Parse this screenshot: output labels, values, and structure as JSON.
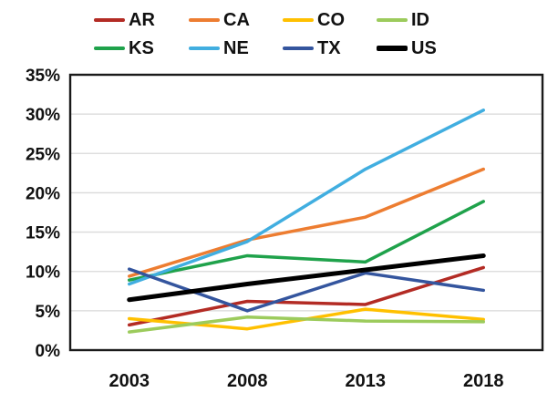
{
  "chart_data": {
    "type": "line",
    "title": "",
    "xlabel": "",
    "ylabel": "",
    "categories": [
      "2003",
      "2008",
      "2013",
      "2018"
    ],
    "series": [
      {
        "name": "AR",
        "color": "#B32B24",
        "values": [
          3.2,
          6.2,
          5.8,
          10.5
        ]
      },
      {
        "name": "CA",
        "color": "#ED7D31",
        "values": [
          9.4,
          14.0,
          16.9,
          23.0
        ]
      },
      {
        "name": "CO",
        "color": "#FFC000",
        "values": [
          4.0,
          2.7,
          5.2,
          3.9
        ]
      },
      {
        "name": "ID",
        "color": "#9CCB5C",
        "values": [
          2.3,
          4.2,
          3.7,
          3.6
        ]
      },
      {
        "name": "KS",
        "color": "#1FA24B",
        "values": [
          8.9,
          12.0,
          11.2,
          18.9
        ]
      },
      {
        "name": "NE",
        "color": "#41AEE0",
        "values": [
          8.4,
          13.8,
          23.0,
          30.5
        ]
      },
      {
        "name": "TX",
        "color": "#34559E",
        "values": [
          10.3,
          5.0,
          9.8,
          7.6
        ]
      },
      {
        "name": "US",
        "color": "#000000",
        "values": [
          6.4,
          8.4,
          10.2,
          12.0
        ]
      }
    ],
    "ylim": [
      0,
      35
    ],
    "ytick_step": 5,
    "ytick_labels": [
      "0%",
      "5%",
      "10%",
      "15%",
      "20%",
      "25%",
      "30%",
      "35%"
    ],
    "grid": true,
    "gridline_color": "#D9D9D9",
    "border_color": "#1A1A1A",
    "legend_position": "top",
    "legend_rows": [
      [
        "AR",
        "CA",
        "CO",
        "ID"
      ],
      [
        "KS",
        "NE",
        "TX",
        "US"
      ]
    ],
    "emphasized_series": "US"
  }
}
